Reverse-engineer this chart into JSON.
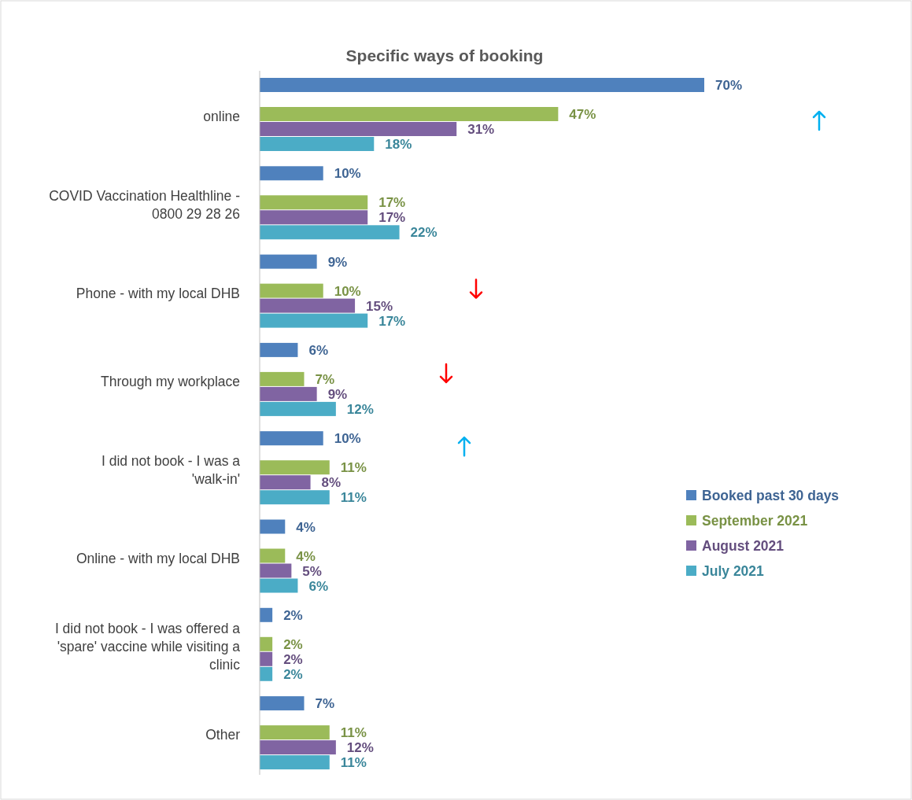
{
  "chart_data": {
    "type": "bar",
    "orientation": "horizontal",
    "title": "Specific ways of booking",
    "categories": [
      "online",
      "COVID Vaccination Healthline - 0800 29 28 26",
      "Phone - with my local DHB",
      "Through my workplace",
      "I did not book - I was a 'walk-in'",
      "Online - with my local DHB",
      "I did not book - I was offered a 'spare' vaccine while visiting a clinic",
      "Other"
    ],
    "series": [
      {
        "name": "Booked past 30 days",
        "color": "#4f81bd",
        "values": [
          70,
          10,
          9,
          6,
          10,
          4,
          2,
          7
        ],
        "value_labels": [
          "70%",
          "10%",
          "9%",
          "6%",
          "10%",
          "4%",
          "2%",
          "7%"
        ]
      },
      {
        "name": "September 2021",
        "color": "#9bbb59",
        "values": [
          47,
          17,
          10,
          7,
          11,
          4,
          2,
          11
        ],
        "value_labels": [
          "47%",
          "17%",
          "10%",
          "7%",
          "11%",
          "4%",
          "2%",
          "11%"
        ]
      },
      {
        "name": "August 2021",
        "color": "#8064a2",
        "values": [
          31,
          17,
          15,
          9,
          8,
          5,
          2,
          12
        ],
        "value_labels": [
          "31%",
          "17%",
          "15%",
          "9%",
          "8%",
          "5%",
          "2%",
          "12%"
        ]
      },
      {
        "name": "July 2021",
        "color": "#4bacc6",
        "values": [
          18,
          22,
          17,
          12,
          11,
          6,
          2,
          11
        ],
        "value_labels": [
          "18%",
          "22%",
          "17%",
          "12%",
          "11%",
          "6%",
          "2%",
          "11%"
        ]
      }
    ],
    "legend": "right"
  }
}
